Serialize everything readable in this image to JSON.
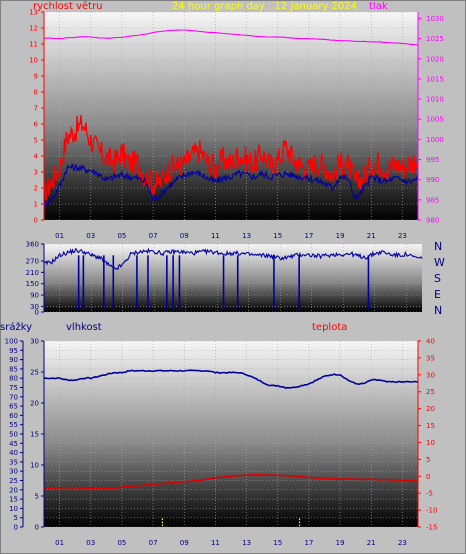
{
  "header": {
    "title": "24 hour graph day : 12 January 2024",
    "left_label": "rychlost větru",
    "right_label": "tlak"
  },
  "bottom_header": {
    "rain_label": "srážky",
    "humidity_label": "vlhkost",
    "temp_label": "teplota"
  },
  "colors": {
    "wind_gust": "#ff0000",
    "wind_avg": "#0000a0",
    "pressure": "#ff00ff",
    "direction": "#0000a0",
    "humidity": "#00009a",
    "temperature": "#dd0000",
    "rain": "#ffff00",
    "title": "#ffff00",
    "wind_axis": "#ff0000",
    "pressure_axis": "#ff00ff",
    "direction_axis": "#000080",
    "compass": "#000080",
    "rain_axis": "#000080",
    "humidity_axis": "#000080",
    "temp_axis": "#ff0000"
  },
  "chart_data": [
    {
      "type": "line",
      "name": "wind-and-pressure",
      "x_ticks": [
        "01",
        "03",
        "05",
        "07",
        "09",
        "11",
        "13",
        "15",
        "17",
        "19",
        "21",
        "23"
      ],
      "x_range_hours": [
        0,
        24
      ],
      "y_left": {
        "range": [
          0,
          13
        ],
        "ticks": [
          0,
          1,
          2,
          3,
          4,
          5,
          6,
          7,
          8,
          9,
          10,
          11,
          12,
          13
        ]
      },
      "y_right": {
        "range": [
          980,
          1031.6
        ],
        "ticks": [
          980,
          985,
          990,
          995,
          1000,
          1005,
          1010,
          1015,
          1020,
          1025,
          1030
        ]
      },
      "series": [
        {
          "values": [
            1.6,
            2.4,
            3.3,
            5.2,
            5.6,
            6.0,
            5.0,
            4.3,
            3.9,
            3.6,
            4.2,
            3.5,
            3.6,
            2.7,
            2.3,
            2.4,
            3.2,
            3.4,
            3.5,
            4.0,
            4.3,
            3.6,
            3.3,
            3.8,
            3.5,
            4.1,
            3.8,
            3.5,
            4.2,
            3.4,
            3.7,
            4.6,
            3.8,
            3.4,
            3.2,
            3.6,
            3.4,
            2.8,
            3.5,
            3.4,
            2.3,
            2.7,
            3.4,
            3.6,
            3.2,
            3.5,
            3.3,
            3.6,
            3.8
          ]
        },
        {
          "values": [
            1.0,
            1.3,
            2.1,
            3.3,
            3.3,
            3.2,
            3.1,
            2.9,
            2.5,
            2.7,
            2.8,
            2.7,
            2.6,
            2.4,
            1.3,
            1.6,
            2.1,
            2.5,
            2.8,
            3.0,
            2.9,
            2.6,
            2.4,
            2.6,
            2.7,
            2.9,
            2.8,
            2.7,
            2.9,
            2.7,
            2.8,
            2.9,
            2.8,
            2.7,
            2.6,
            2.5,
            2.3,
            2.0,
            2.7,
            2.6,
            1.3,
            1.9,
            2.7,
            2.5,
            2.4,
            2.6,
            2.5,
            2.4,
            2.6
          ]
        },
        {
          "values": [
            1025.1,
            1025.1,
            1025.0,
            1025.2,
            1025.3,
            1025.5,
            1025.4,
            1025.2,
            1025.1,
            1025.2,
            1025.3,
            1025.6,
            1025.8,
            1026.1,
            1026.5,
            1026.8,
            1027.0,
            1027.1,
            1027.1,
            1027.0,
            1026.8,
            1026.6,
            1026.5,
            1026.3,
            1026.1,
            1026.0,
            1025.8,
            1025.6,
            1025.5,
            1025.4,
            1025.4,
            1025.3,
            1025.1,
            1025.0,
            1025.0,
            1024.9,
            1024.8,
            1024.6,
            1024.5,
            1024.5,
            1024.3,
            1024.3,
            1024.2,
            1024.2,
            1024.0,
            1023.9,
            1023.8,
            1023.6,
            1023.4
          ]
        }
      ]
    },
    {
      "type": "line",
      "name": "wind-direction",
      "x_range_hours": [
        0,
        24
      ],
      "y_left": {
        "range": [
          0,
          360
        ],
        "ticks": [
          0,
          30,
          90,
          150,
          210,
          270,
          360
        ]
      },
      "compass": [
        "N",
        "W",
        "S",
        "E",
        "N"
      ],
      "series": [
        {
          "values": [
            255,
            265,
            300,
            315,
            325,
            320,
            300,
            290,
            255,
            225,
            250,
            305,
            318,
            322,
            320,
            310,
            318,
            320,
            315,
            312,
            318,
            320,
            315,
            308,
            312,
            310,
            305,
            300,
            300,
            295,
            285,
            290,
            300,
            305,
            300,
            295,
            300,
            305,
            305,
            308,
            295,
            290,
            310,
            318,
            305,
            300,
            305,
            290,
            282
          ]
        }
      ],
      "drop_hours": [
        2.2,
        2.5,
        3.8,
        4.4,
        5.9,
        6.6,
        7.8,
        8.2,
        8.6,
        11.4,
        12.3,
        14.6,
        16.2,
        20.6
      ]
    },
    {
      "type": "line",
      "name": "rain-humidity-temperature",
      "x_ticks": [
        "01",
        "03",
        "05",
        "07",
        "09",
        "11",
        "13",
        "15",
        "17",
        "19",
        "21",
        "23"
      ],
      "x_range_hours": [
        0,
        24
      ],
      "y_rain": {
        "range": [
          0,
          100
        ],
        "ticks": [
          0,
          5,
          10,
          15,
          20,
          25,
          30,
          35,
          40,
          45,
          50,
          55,
          60,
          65,
          70,
          75,
          80,
          85,
          90,
          95,
          100
        ]
      },
      "y_humidity": {
        "range": [
          0,
          30
        ],
        "ticks": [
          0,
          5,
          10,
          15,
          20,
          25,
          30
        ]
      },
      "y_temp": {
        "range": [
          -15,
          40
        ],
        "ticks": [
          -15,
          -10,
          -5,
          0,
          5,
          10,
          15,
          20,
          25,
          30,
          35,
          40
        ]
      },
      "series": [
        {
          "values": [
            80,
            80,
            80,
            79,
            79,
            80,
            80,
            81,
            82,
            83,
            83,
            84,
            84,
            84,
            84,
            84,
            84,
            84,
            84,
            84,
            84,
            84,
            83,
            83,
            83,
            83,
            82,
            80,
            78,
            76,
            76,
            75,
            75,
            76,
            77,
            79,
            81,
            82,
            82,
            79,
            77,
            77,
            79,
            79,
            78,
            78,
            78,
            78,
            78
          ]
        },
        {
          "values": [
            -3.8,
            -3.5,
            -3.4,
            -3.4,
            -3.4,
            -3.5,
            -3.6,
            -3.7,
            -3.6,
            -3.5,
            -3.2,
            -3.0,
            -2.8,
            -2.6,
            -2.4,
            -2.2,
            -2.0,
            -1.8,
            -1.6,
            -1.4,
            -1.2,
            -0.8,
            -0.5,
            -0.2,
            0.0,
            0.2,
            0.3,
            0.4,
            0.4,
            0.4,
            0.3,
            0.2,
            0.1,
            -0.1,
            -0.3,
            -0.5,
            -0.6,
            -0.7,
            -0.8,
            -0.8,
            -0.9,
            -0.9,
            -0.9,
            -1.0,
            -1.0,
            -1.1,
            -1.2,
            -1.3,
            -1.4
          ]
        }
      ],
      "rain_marker_hours": [
        7.6,
        16.4
      ]
    }
  ]
}
